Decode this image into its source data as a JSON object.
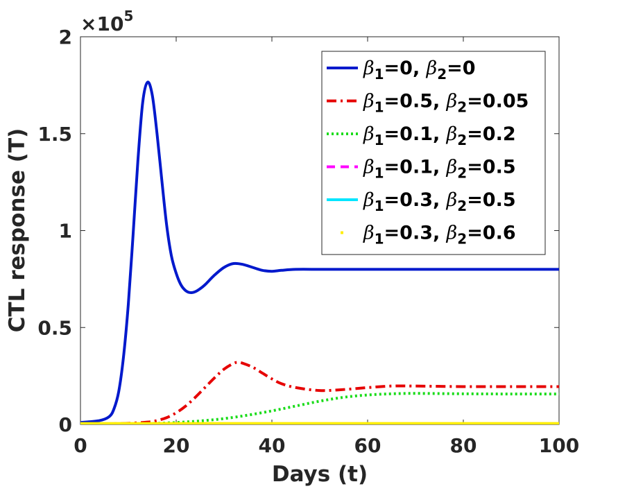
{
  "chart_data": {
    "type": "line",
    "title": "",
    "xlabel": "Days (t)",
    "ylabel": "CTL response (T)",
    "xlim": [
      0,
      100
    ],
    "ylim": [
      0,
      2
    ],
    "y_multiplier": {
      "base": "×10",
      "exponent": "5"
    },
    "xticks": [
      {
        "value": 0,
        "label": "0"
      },
      {
        "value": 20,
        "label": "20"
      },
      {
        "value": 40,
        "label": "40"
      },
      {
        "value": 60,
        "label": "60"
      },
      {
        "value": 80,
        "label": "80"
      },
      {
        "value": 100,
        "label": "100"
      }
    ],
    "yticks": [
      {
        "value": 0,
        "label": "0"
      },
      {
        "value": 0.5,
        "label": "0.5"
      },
      {
        "value": 1,
        "label": "1"
      },
      {
        "value": 1.5,
        "label": "1.5"
      },
      {
        "value": 2,
        "label": "2"
      }
    ],
    "grid": false,
    "legend_position": "top-right",
    "series": [
      {
        "name": "β1=0, β2=0",
        "b1": "0",
        "b2": "0",
        "color": "#0019cc",
        "style": "solid",
        "x": [
          0,
          4,
          6,
          7,
          8,
          9,
          10,
          11,
          12,
          13,
          14,
          15,
          16,
          17,
          18,
          19,
          20,
          21,
          22,
          23,
          24,
          25,
          26,
          28,
          30,
          32,
          34,
          36,
          38,
          40,
          42,
          45,
          50,
          55,
          60,
          70,
          80,
          90,
          100
        ],
        "y": [
          0.01,
          0.02,
          0.04,
          0.08,
          0.17,
          0.35,
          0.62,
          0.98,
          1.36,
          1.66,
          1.765,
          1.7,
          1.5,
          1.26,
          1.03,
          0.87,
          0.78,
          0.72,
          0.69,
          0.68,
          0.685,
          0.7,
          0.72,
          0.77,
          0.81,
          0.83,
          0.825,
          0.81,
          0.795,
          0.79,
          0.795,
          0.8,
          0.8,
          0.8,
          0.8,
          0.8,
          0.8,
          0.8,
          0.8
        ]
      },
      {
        "name": "β1=0.5, β2=0.05",
        "b1": "0.5",
        "b2": "0.05",
        "color": "#e60000",
        "style": "dashdot",
        "x": [
          0,
          5,
          10,
          14,
          16,
          18,
          20,
          22,
          24,
          26,
          28,
          30,
          32,
          33,
          34,
          36,
          38,
          40,
          42,
          45,
          50,
          55,
          60,
          65,
          70,
          80,
          90,
          100
        ],
        "y": [
          0.003,
          0.003,
          0.006,
          0.012,
          0.02,
          0.035,
          0.06,
          0.095,
          0.14,
          0.19,
          0.24,
          0.285,
          0.315,
          0.32,
          0.315,
          0.295,
          0.265,
          0.235,
          0.21,
          0.19,
          0.175,
          0.18,
          0.19,
          0.198,
          0.198,
          0.195,
          0.195,
          0.195
        ]
      },
      {
        "name": "β1=0.1, β2=0.2",
        "b1": "0.1",
        "b2": "0.2",
        "color": "#1adc1a",
        "style": "dotted",
        "x": [
          0,
          10,
          15,
          20,
          25,
          30,
          35,
          40,
          45,
          50,
          55,
          60,
          65,
          70,
          80,
          90,
          100
        ],
        "y": [
          0.003,
          0.003,
          0.005,
          0.01,
          0.018,
          0.03,
          0.048,
          0.07,
          0.095,
          0.12,
          0.14,
          0.152,
          0.158,
          0.16,
          0.158,
          0.157,
          0.157
        ]
      },
      {
        "name": "β1=0.1, β2=0.5",
        "b1": "0.1",
        "b2": "0.5",
        "color": "#ff00ff",
        "style": "dashed",
        "x": [
          0,
          100
        ],
        "y": [
          0.003,
          0.003
        ]
      },
      {
        "name": "β1=0.3, β2=0.5",
        "b1": "0.3",
        "b2": "0.5",
        "color": "#00e5ff",
        "style": "solid",
        "x": [
          0,
          100
        ],
        "y": [
          0.003,
          0.003
        ]
      },
      {
        "name": "β1=0.3, β2=0.6",
        "b1": "0.3",
        "b2": "0.6",
        "color": "#ffee00",
        "style": "point",
        "x": [
          0,
          100
        ],
        "y": [
          0.003,
          0.003
        ]
      }
    ]
  }
}
